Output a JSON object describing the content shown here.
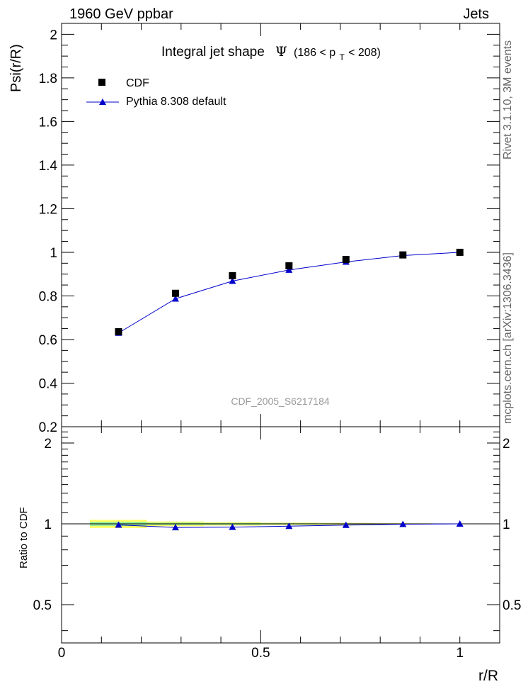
{
  "header": {
    "left": "1960 GeV ppbar",
    "right": "Jets"
  },
  "side_text": {
    "top": "Rivet 3.1.10,  3M events",
    "bottom": "mcplots.cern.ch [arXiv:1306.3436]"
  },
  "chart_data": [
    {
      "type": "scatter",
      "title_main": "Integral jet shape",
      "title_symbol": "Ψ",
      "title_range": "(186 < p",
      "title_sub": "T",
      "title_range_end": " < 208)",
      "ylabel": "Psi(r/R)",
      "xlim": [
        0,
        1.1
      ],
      "ylim": [
        0.2,
        2.05
      ],
      "yticks": [
        "0.2",
        "0.4",
        "0.6",
        "0.8",
        "1",
        "1.2",
        "1.4",
        "1.6",
        "1.8",
        "2"
      ],
      "watermark": "CDF_2005_S6217184",
      "legend_placement": "top-left",
      "x": [
        0.143,
        0.286,
        0.429,
        0.571,
        0.714,
        0.857,
        1.0
      ],
      "series": [
        {
          "name": "CDF",
          "marker": "square",
          "color": "#000000",
          "values": [
            0.636,
            0.812,
            0.893,
            0.938,
            0.967,
            0.988,
            1.0
          ]
        },
        {
          "name": "Pythia 8.308 default",
          "marker": "triangle",
          "color": "#0000cc",
          "values": [
            0.63,
            0.787,
            0.868,
            0.919,
            0.956,
            0.985,
            1.0
          ]
        }
      ]
    },
    {
      "type": "line",
      "ylabel": "Ratio to CDF",
      "xlabel": "r/R",
      "xlim": [
        0,
        1.1
      ],
      "xticks": [
        "0",
        "0.5",
        "1"
      ],
      "ylim": [
        0.36,
        2.3
      ],
      "yticks": [
        "0.5",
        "1",
        "2"
      ],
      "x": [
        0.143,
        0.286,
        0.429,
        0.571,
        0.714,
        0.857,
        1.0
      ],
      "band_bins": [
        [
          0.071,
          0.214
        ],
        [
          0.214,
          0.357
        ],
        [
          0.357,
          0.5
        ],
        [
          0.5,
          0.643
        ],
        [
          0.643,
          0.786
        ],
        [
          0.786,
          0.929
        ],
        [
          0.929,
          1.071
        ]
      ],
      "band_outer": [
        0.035,
        0.02,
        0.015,
        0.01,
        0.008,
        0.005,
        0.002
      ],
      "band_inner": [
        0.018,
        0.01,
        0.008,
        0.005,
        0.004,
        0.003,
        0.001
      ],
      "band_outer_color": "#ffff66",
      "band_inner_color": "#99ee99",
      "series": [
        {
          "name": "Pythia 8.308 default",
          "color": "#0000cc",
          "values": [
            0.991,
            0.969,
            0.972,
            0.98,
            0.989,
            0.997,
            1.0
          ]
        }
      ]
    }
  ]
}
